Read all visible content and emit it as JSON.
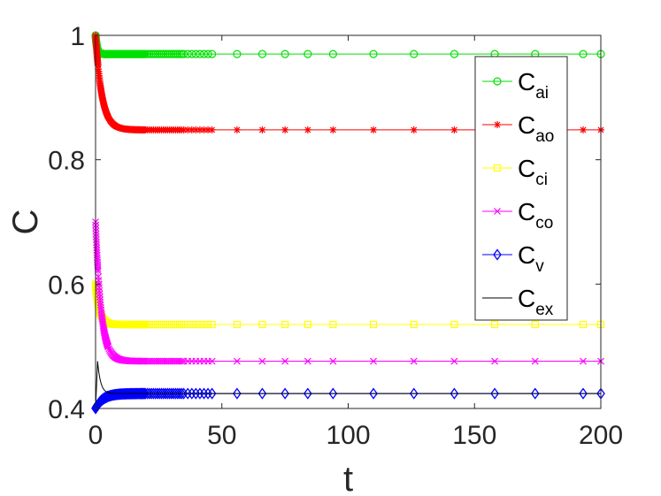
{
  "chart_data": {
    "type": "line",
    "title": "",
    "xlabel": "t",
    "ylabel": "C",
    "xlim": [
      0,
      200
    ],
    "ylim": [
      0.4,
      1.0
    ],
    "xticks": [
      0,
      50,
      100,
      150,
      200
    ],
    "yticks": [
      0.4,
      0.6,
      0.8,
      1.0
    ],
    "xtick_labels": [
      "0",
      "50",
      "100",
      "150",
      "200"
    ],
    "ytick_labels": [
      "0.4",
      "0.6",
      "0.8",
      "1"
    ],
    "legend_position": "top-right",
    "series": [
      {
        "name": "C_ai",
        "label_main": "C",
        "label_sub": "ai",
        "color": "#00e000",
        "marker": "circle",
        "start": 1.0,
        "end": 0.97,
        "tau": 0.6
      },
      {
        "name": "C_ao",
        "label_main": "C",
        "label_sub": "ao",
        "color": "#ff0000",
        "marker": "star",
        "start": 1.0,
        "end": 0.848,
        "tau": 2.5
      },
      {
        "name": "C_ci",
        "label_main": "C",
        "label_sub": "ci",
        "color": "#ffff00",
        "marker": "square",
        "start": 0.6,
        "end": 0.535,
        "tau": 1.5
      },
      {
        "name": "C_co",
        "label_main": "C",
        "label_sub": "co",
        "color": "#ff00ff",
        "marker": "x",
        "start": 0.7,
        "end": 0.476,
        "tau": 2.2
      },
      {
        "name": "C_v",
        "label_main": "C",
        "label_sub": "v",
        "color": "#0000ff",
        "marker": "diamond",
        "start": 0.4,
        "end": 0.424,
        "tau": 3.0
      },
      {
        "name": "C_ex",
        "label_main": "C",
        "label_sub": "ex",
        "color": "#000000",
        "marker": "none",
        "start": 0.4,
        "end": 0.424,
        "peak": 0.476,
        "peak_t": 0.8
      }
    ]
  }
}
